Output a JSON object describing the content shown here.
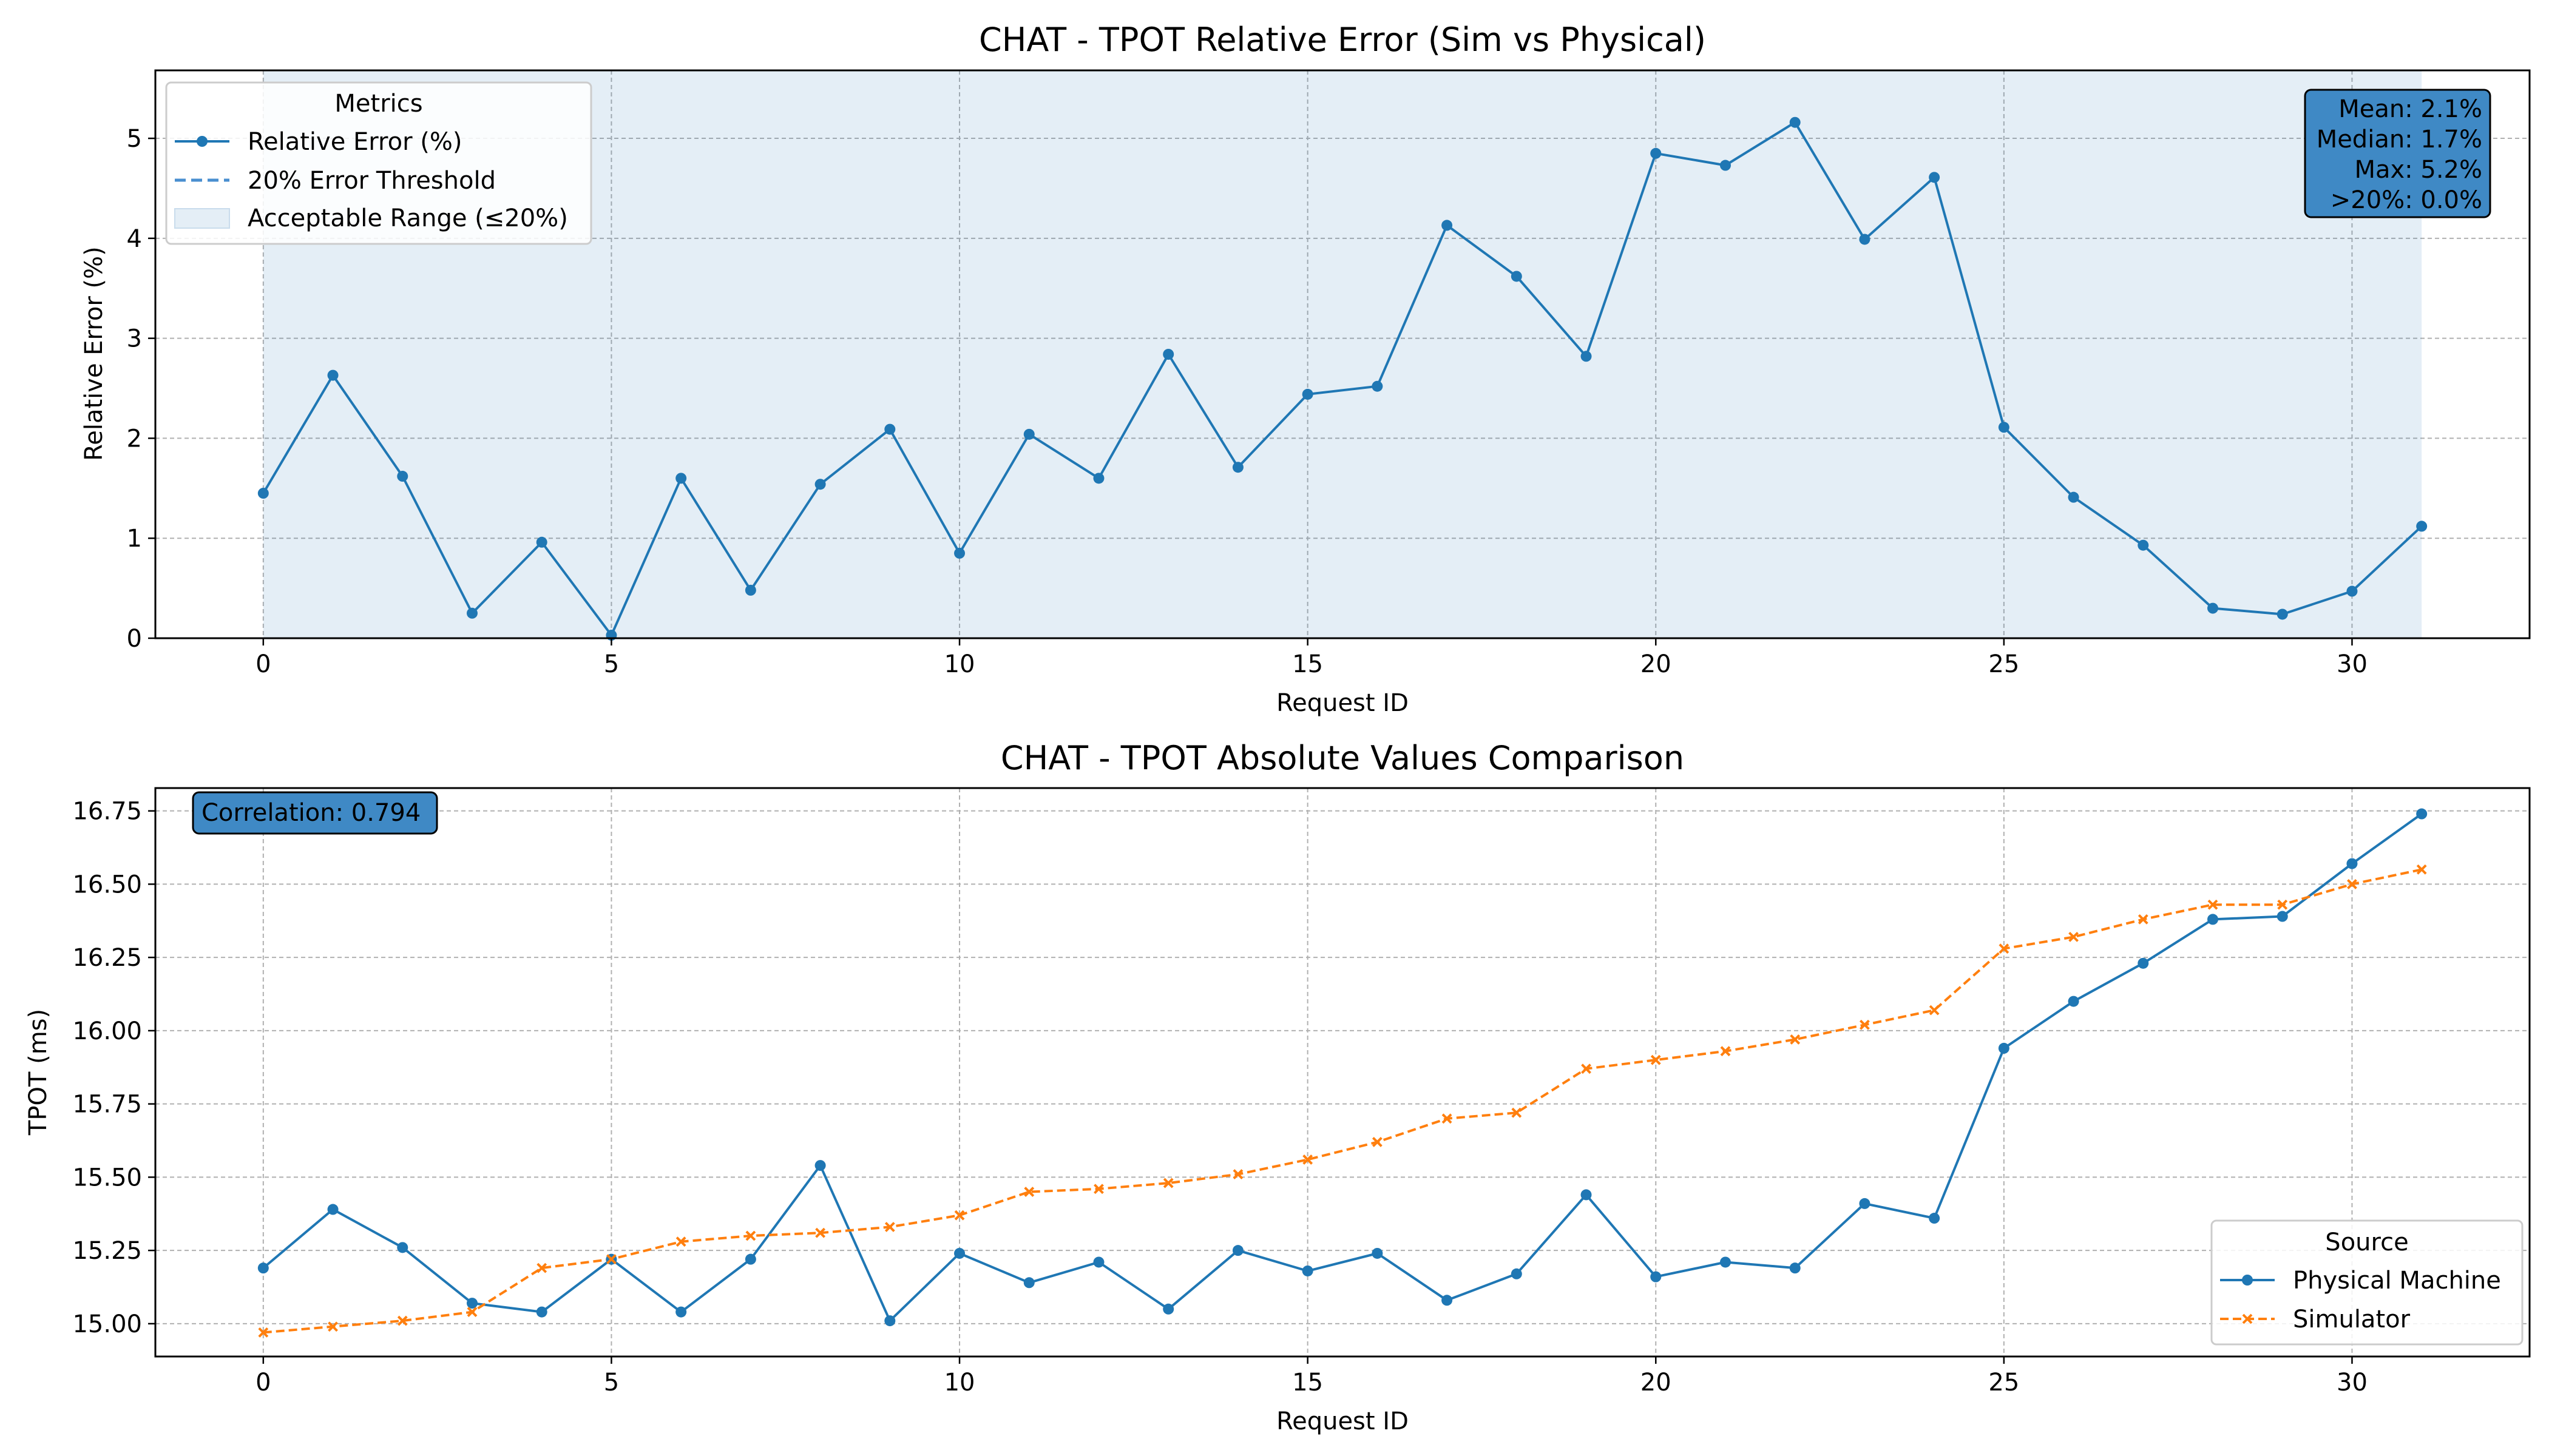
{
  "chart_data": [
    {
      "type": "line",
      "title": "CHAT - TPOT Relative Error (Sim vs Physical)",
      "xlabel": "Request ID",
      "ylabel": "Relative Error (%)",
      "xlim": [
        -1.55,
        32.55
      ],
      "ylim": [
        0,
        5.68
      ],
      "x_ticks": [
        0,
        5,
        10,
        15,
        20,
        25,
        30
      ],
      "y_ticks": [
        0,
        1,
        2,
        3,
        4,
        5
      ],
      "grid": true,
      "x": [
        0,
        1,
        2,
        3,
        4,
        5,
        6,
        7,
        8,
        9,
        10,
        11,
        12,
        13,
        14,
        15,
        16,
        17,
        18,
        19,
        20,
        21,
        22,
        23,
        24,
        25,
        26,
        27,
        28,
        29,
        30,
        31
      ],
      "series": [
        {
          "name": "Relative Error (%)",
          "color": "#1f77b4",
          "style": "solid",
          "marker": "circle",
          "values": [
            1.45,
            2.63,
            1.62,
            0.25,
            0.96,
            0.03,
            1.6,
            0.48,
            1.54,
            2.09,
            0.85,
            2.04,
            1.6,
            2.84,
            1.71,
            2.44,
            2.52,
            4.13,
            3.62,
            2.82,
            4.85,
            4.73,
            5.16,
            3.99,
            4.61,
            2.11,
            1.41,
            0.93,
            0.3,
            0.24,
            0.47,
            1.12
          ]
        }
      ],
      "threshold": {
        "name": "20% Error Threshold",
        "value": 20,
        "color": "#4a8fd0",
        "style": "dashed"
      },
      "shaded_range": {
        "name": "Acceptable Range (≤20%)",
        "from": 0,
        "to": 20,
        "x_from": 0,
        "x_to": 31,
        "color": "#1f77b4"
      },
      "legend": {
        "title": "Metrics",
        "position": "top-left",
        "entries": [
          "Relative Error (%)",
          "20% Error Threshold",
          "Acceptable Range (≤20%)"
        ]
      },
      "stats_box": {
        "position": "top-right",
        "lines": [
          "Mean: 2.1%",
          "Median: 1.7%",
          "Max: 5.2%",
          ">20%: 0.0%"
        ],
        "color": "#3f89c5"
      }
    },
    {
      "type": "line",
      "title": "CHAT - TPOT Absolute Values Comparison",
      "xlabel": "Request ID",
      "ylabel": "TPOT (ms)",
      "xlim": [
        -1.55,
        32.55
      ],
      "ylim": [
        14.888,
        16.828
      ],
      "x_ticks": [
        0,
        5,
        10,
        15,
        20,
        25,
        30
      ],
      "y_ticks": [
        15.0,
        15.25,
        15.5,
        15.75,
        16.0,
        16.25,
        16.5,
        16.75
      ],
      "y_tick_labels": [
        "15.00",
        "15.25",
        "15.50",
        "15.75",
        "16.00",
        "16.25",
        "16.50",
        "16.75"
      ],
      "grid": true,
      "x": [
        0,
        1,
        2,
        3,
        4,
        5,
        6,
        7,
        8,
        9,
        10,
        11,
        12,
        13,
        14,
        15,
        16,
        17,
        18,
        19,
        20,
        21,
        22,
        23,
        24,
        25,
        26,
        27,
        28,
        29,
        30,
        31
      ],
      "series": [
        {
          "name": "Physical Machine",
          "color": "#1f77b4",
          "style": "solid",
          "marker": "circle",
          "values": [
            15.19,
            15.39,
            15.26,
            15.07,
            15.04,
            15.22,
            15.04,
            15.22,
            15.54,
            15.01,
            15.24,
            15.14,
            15.21,
            15.05,
            15.25,
            15.18,
            15.24,
            15.08,
            15.17,
            15.44,
            15.16,
            15.21,
            15.19,
            15.41,
            15.36,
            15.94,
            16.1,
            16.23,
            16.38,
            16.39,
            16.57,
            16.74
          ]
        },
        {
          "name": "Simulator",
          "color": "#ff7f0e",
          "style": "dashed",
          "marker": "x",
          "values": [
            14.97,
            14.99,
            15.01,
            15.04,
            15.19,
            15.22,
            15.28,
            15.3,
            15.31,
            15.33,
            15.37,
            15.45,
            15.46,
            15.48,
            15.51,
            15.56,
            15.62,
            15.7,
            15.72,
            15.87,
            15.9,
            15.93,
            15.97,
            16.02,
            16.07,
            16.28,
            16.32,
            16.38,
            16.43,
            16.43,
            16.5,
            16.55
          ]
        }
      ],
      "legend": {
        "title": "Source",
        "position": "bottom-right",
        "entries": [
          "Physical Machine",
          "Simulator"
        ]
      },
      "stats_box": {
        "position": "top-left",
        "lines": [
          "Correlation: 0.794"
        ],
        "color": "#3f89c5"
      }
    }
  ]
}
